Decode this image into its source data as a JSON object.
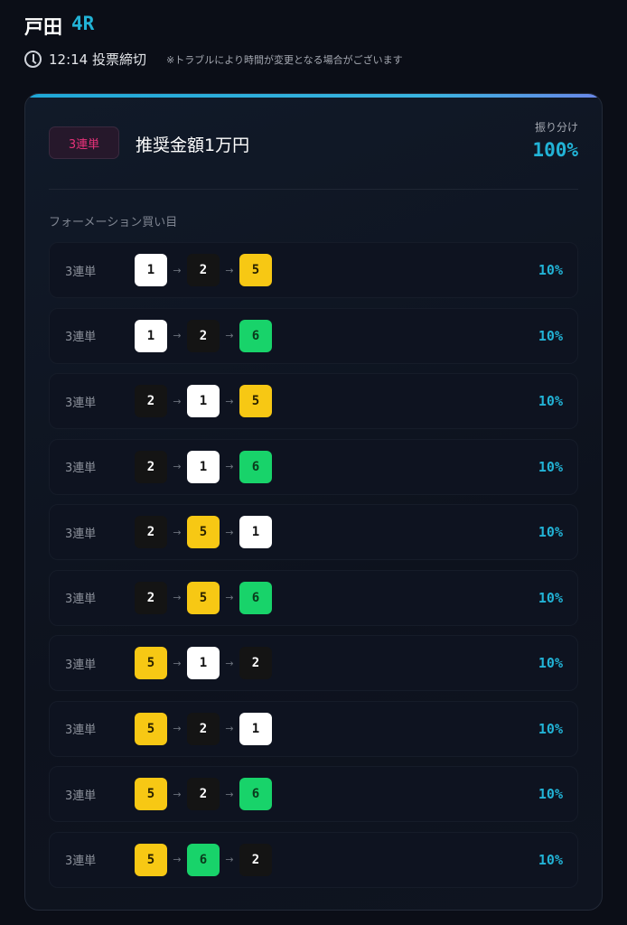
{
  "header": {
    "venue": "戸田",
    "race": "4R",
    "deadline_time": "12:14 投票締切",
    "note": "※トラブルにより時間が変更となる場合がございます"
  },
  "card": {
    "bet_type_badge": "3連単",
    "amount": "推奨金額1万円",
    "allocation_label": "振り分け",
    "allocation_value": "100%",
    "section_title": "フォーメーション買い目"
  },
  "boat_colors": {
    "1": {
      "bg": "#ffffff",
      "fg": "#111111"
    },
    "2": {
      "bg": "#141414",
      "fg": "#ffffff"
    },
    "5": {
      "bg": "#f7c814",
      "fg": "#2a2200"
    },
    "6": {
      "bg": "#18d36a",
      "fg": "#0a3a1c"
    }
  },
  "arrow": "→",
  "rows": [
    {
      "type": "3連単",
      "combo": [
        "1",
        "2",
        "5"
      ],
      "pct": "10%"
    },
    {
      "type": "3連単",
      "combo": [
        "1",
        "2",
        "6"
      ],
      "pct": "10%"
    },
    {
      "type": "3連単",
      "combo": [
        "2",
        "1",
        "5"
      ],
      "pct": "10%"
    },
    {
      "type": "3連単",
      "combo": [
        "2",
        "1",
        "6"
      ],
      "pct": "10%"
    },
    {
      "type": "3連単",
      "combo": [
        "2",
        "5",
        "1"
      ],
      "pct": "10%"
    },
    {
      "type": "3連単",
      "combo": [
        "2",
        "5",
        "6"
      ],
      "pct": "10%"
    },
    {
      "type": "3連単",
      "combo": [
        "5",
        "1",
        "2"
      ],
      "pct": "10%"
    },
    {
      "type": "3連単",
      "combo": [
        "5",
        "2",
        "1"
      ],
      "pct": "10%"
    },
    {
      "type": "3連単",
      "combo": [
        "5",
        "2",
        "6"
      ],
      "pct": "10%"
    },
    {
      "type": "3連単",
      "combo": [
        "5",
        "6",
        "2"
      ],
      "pct": "10%"
    }
  ]
}
